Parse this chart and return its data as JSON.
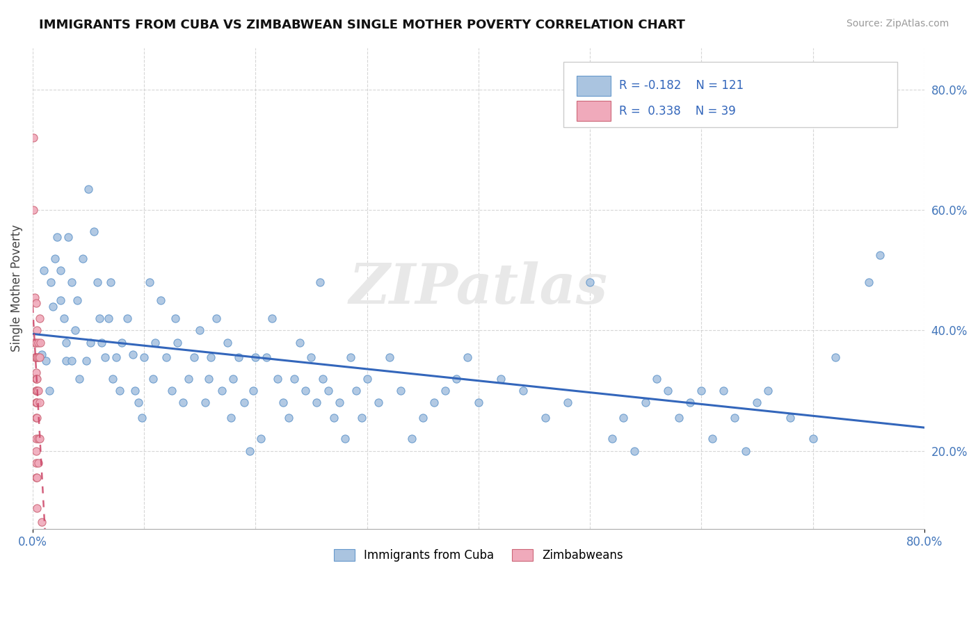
{
  "title": "IMMIGRANTS FROM CUBA VS ZIMBABWEAN SINGLE MOTHER POVERTY CORRELATION CHART",
  "source": "Source: ZipAtlas.com",
  "ylabel": "Single Mother Poverty",
  "xlim": [
    0.0,
    0.8
  ],
  "ylim": [
    0.07,
    0.87
  ],
  "yticks_right": [
    0.2,
    0.4,
    0.6,
    0.8
  ],
  "ytick_labels_right": [
    "20.0%",
    "40.0%",
    "60.0%",
    "80.0%"
  ],
  "legend_R1": "-0.182",
  "legend_N1": "121",
  "legend_R2": "0.338",
  "legend_N2": "39",
  "cuba_color": "#aac4e0",
  "cuba_edge_color": "#6699cc",
  "zimbabwe_color": "#f0aabb",
  "zimbabwe_edge_color": "#cc6677",
  "trend_cuba_color": "#3366bb",
  "trend_zimbabwe_color": "#cc4466",
  "cuba_dots": [
    [
      0.008,
      0.36
    ],
    [
      0.01,
      0.5
    ],
    [
      0.012,
      0.35
    ],
    [
      0.015,
      0.3
    ],
    [
      0.016,
      0.48
    ],
    [
      0.018,
      0.44
    ],
    [
      0.02,
      0.52
    ],
    [
      0.022,
      0.555
    ],
    [
      0.025,
      0.5
    ],
    [
      0.025,
      0.45
    ],
    [
      0.028,
      0.42
    ],
    [
      0.03,
      0.38
    ],
    [
      0.03,
      0.35
    ],
    [
      0.032,
      0.555
    ],
    [
      0.035,
      0.48
    ],
    [
      0.035,
      0.35
    ],
    [
      0.038,
      0.4
    ],
    [
      0.04,
      0.45
    ],
    [
      0.042,
      0.32
    ],
    [
      0.045,
      0.52
    ],
    [
      0.048,
      0.35
    ],
    [
      0.05,
      0.635
    ],
    [
      0.052,
      0.38
    ],
    [
      0.055,
      0.565
    ],
    [
      0.058,
      0.48
    ],
    [
      0.06,
      0.42
    ],
    [
      0.062,
      0.38
    ],
    [
      0.065,
      0.355
    ],
    [
      0.068,
      0.42
    ],
    [
      0.07,
      0.48
    ],
    [
      0.072,
      0.32
    ],
    [
      0.075,
      0.355
    ],
    [
      0.078,
      0.3
    ],
    [
      0.08,
      0.38
    ],
    [
      0.085,
      0.42
    ],
    [
      0.09,
      0.36
    ],
    [
      0.092,
      0.3
    ],
    [
      0.095,
      0.28
    ],
    [
      0.098,
      0.255
    ],
    [
      0.1,
      0.355
    ],
    [
      0.105,
      0.48
    ],
    [
      0.108,
      0.32
    ],
    [
      0.11,
      0.38
    ],
    [
      0.115,
      0.45
    ],
    [
      0.12,
      0.355
    ],
    [
      0.125,
      0.3
    ],
    [
      0.128,
      0.42
    ],
    [
      0.13,
      0.38
    ],
    [
      0.135,
      0.28
    ],
    [
      0.14,
      0.32
    ],
    [
      0.145,
      0.355
    ],
    [
      0.15,
      0.4
    ],
    [
      0.155,
      0.28
    ],
    [
      0.158,
      0.32
    ],
    [
      0.16,
      0.355
    ],
    [
      0.165,
      0.42
    ],
    [
      0.17,
      0.3
    ],
    [
      0.175,
      0.38
    ],
    [
      0.178,
      0.255
    ],
    [
      0.18,
      0.32
    ],
    [
      0.185,
      0.355
    ],
    [
      0.19,
      0.28
    ],
    [
      0.195,
      0.2
    ],
    [
      0.198,
      0.3
    ],
    [
      0.2,
      0.355
    ],
    [
      0.205,
      0.22
    ],
    [
      0.21,
      0.355
    ],
    [
      0.215,
      0.42
    ],
    [
      0.22,
      0.32
    ],
    [
      0.225,
      0.28
    ],
    [
      0.23,
      0.255
    ],
    [
      0.235,
      0.32
    ],
    [
      0.24,
      0.38
    ],
    [
      0.245,
      0.3
    ],
    [
      0.25,
      0.355
    ],
    [
      0.255,
      0.28
    ],
    [
      0.258,
      0.48
    ],
    [
      0.26,
      0.32
    ],
    [
      0.265,
      0.3
    ],
    [
      0.27,
      0.255
    ],
    [
      0.275,
      0.28
    ],
    [
      0.28,
      0.22
    ],
    [
      0.285,
      0.355
    ],
    [
      0.29,
      0.3
    ],
    [
      0.295,
      0.255
    ],
    [
      0.3,
      0.32
    ],
    [
      0.31,
      0.28
    ],
    [
      0.32,
      0.355
    ],
    [
      0.33,
      0.3
    ],
    [
      0.34,
      0.22
    ],
    [
      0.35,
      0.255
    ],
    [
      0.36,
      0.28
    ],
    [
      0.37,
      0.3
    ],
    [
      0.38,
      0.32
    ],
    [
      0.39,
      0.355
    ],
    [
      0.4,
      0.28
    ],
    [
      0.42,
      0.32
    ],
    [
      0.44,
      0.3
    ],
    [
      0.46,
      0.255
    ],
    [
      0.48,
      0.28
    ],
    [
      0.5,
      0.48
    ],
    [
      0.52,
      0.22
    ],
    [
      0.53,
      0.255
    ],
    [
      0.54,
      0.2
    ],
    [
      0.55,
      0.28
    ],
    [
      0.56,
      0.32
    ],
    [
      0.57,
      0.3
    ],
    [
      0.58,
      0.255
    ],
    [
      0.59,
      0.28
    ],
    [
      0.6,
      0.3
    ],
    [
      0.61,
      0.22
    ],
    [
      0.62,
      0.3
    ],
    [
      0.63,
      0.255
    ],
    [
      0.64,
      0.2
    ],
    [
      0.65,
      0.28
    ],
    [
      0.66,
      0.3
    ],
    [
      0.68,
      0.255
    ],
    [
      0.7,
      0.22
    ],
    [
      0.72,
      0.355
    ],
    [
      0.75,
      0.48
    ],
    [
      0.76,
      0.525
    ]
  ],
  "zimbabwe_dots": [
    [
      0.001,
      0.72
    ],
    [
      0.001,
      0.6
    ],
    [
      0.002,
      0.455
    ],
    [
      0.002,
      0.38
    ],
    [
      0.002,
      0.355
    ],
    [
      0.003,
      0.32
    ],
    [
      0.003,
      0.3
    ],
    [
      0.003,
      0.28
    ],
    [
      0.003,
      0.445
    ],
    [
      0.003,
      0.38
    ],
    [
      0.003,
      0.355
    ],
    [
      0.003,
      0.33
    ],
    [
      0.003,
      0.32
    ],
    [
      0.003,
      0.3
    ],
    [
      0.003,
      0.28
    ],
    [
      0.003,
      0.255
    ],
    [
      0.003,
      0.22
    ],
    [
      0.003,
      0.2
    ],
    [
      0.003,
      0.18
    ],
    [
      0.003,
      0.155
    ],
    [
      0.004,
      0.4
    ],
    [
      0.004,
      0.355
    ],
    [
      0.004,
      0.32
    ],
    [
      0.004,
      0.3
    ],
    [
      0.004,
      0.28
    ],
    [
      0.004,
      0.255
    ],
    [
      0.004,
      0.155
    ],
    [
      0.004,
      0.105
    ],
    [
      0.005,
      0.38
    ],
    [
      0.005,
      0.355
    ],
    [
      0.005,
      0.3
    ],
    [
      0.005,
      0.22
    ],
    [
      0.005,
      0.18
    ],
    [
      0.006,
      0.42
    ],
    [
      0.006,
      0.355
    ],
    [
      0.006,
      0.28
    ],
    [
      0.006,
      0.22
    ],
    [
      0.007,
      0.38
    ],
    [
      0.008,
      0.082
    ]
  ]
}
